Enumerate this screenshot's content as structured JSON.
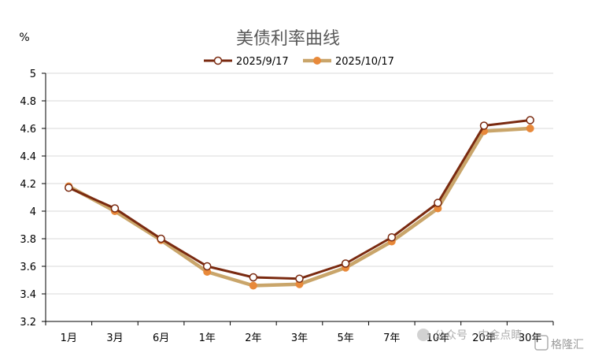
{
  "chart_data": {
    "type": "line",
    "title": "美债利率曲线",
    "ylabel": "%",
    "xlabel": "",
    "categories": [
      "1月",
      "3月",
      "6月",
      "1年",
      "2年",
      "3年",
      "5年",
      "7年",
      "10年",
      "20年",
      "30年"
    ],
    "ylim": [
      3.2,
      5.0
    ],
    "yticks": [
      3.2,
      3.4,
      3.6,
      3.8,
      4.0,
      4.2,
      4.4,
      4.6,
      4.8,
      5.0
    ],
    "ytick_labels": [
      "3.2",
      "3.4",
      "3.6",
      "3.8",
      "4",
      "4.2",
      "4.4",
      "4.6",
      "4.8",
      "5"
    ],
    "grid": true,
    "legend_position": "top-center",
    "series": [
      {
        "name": "2025/9/17",
        "color": "#7a2a10",
        "marker": "hollow-circle",
        "values": [
          4.17,
          4.02,
          3.8,
          3.6,
          3.52,
          3.51,
          3.62,
          3.81,
          4.06,
          4.62,
          4.66
        ]
      },
      {
        "name": "2025/10/17",
        "color": "#c9a56a",
        "marker_color": "#e8893a",
        "marker": "filled-circle",
        "values": [
          4.18,
          4.0,
          3.79,
          3.56,
          3.46,
          3.47,
          3.59,
          3.78,
          4.02,
          4.58,
          4.6
        ]
      }
    ]
  },
  "watermark": {
    "text1": "公众号 · 中金点睛",
    "text2": "格隆汇"
  }
}
